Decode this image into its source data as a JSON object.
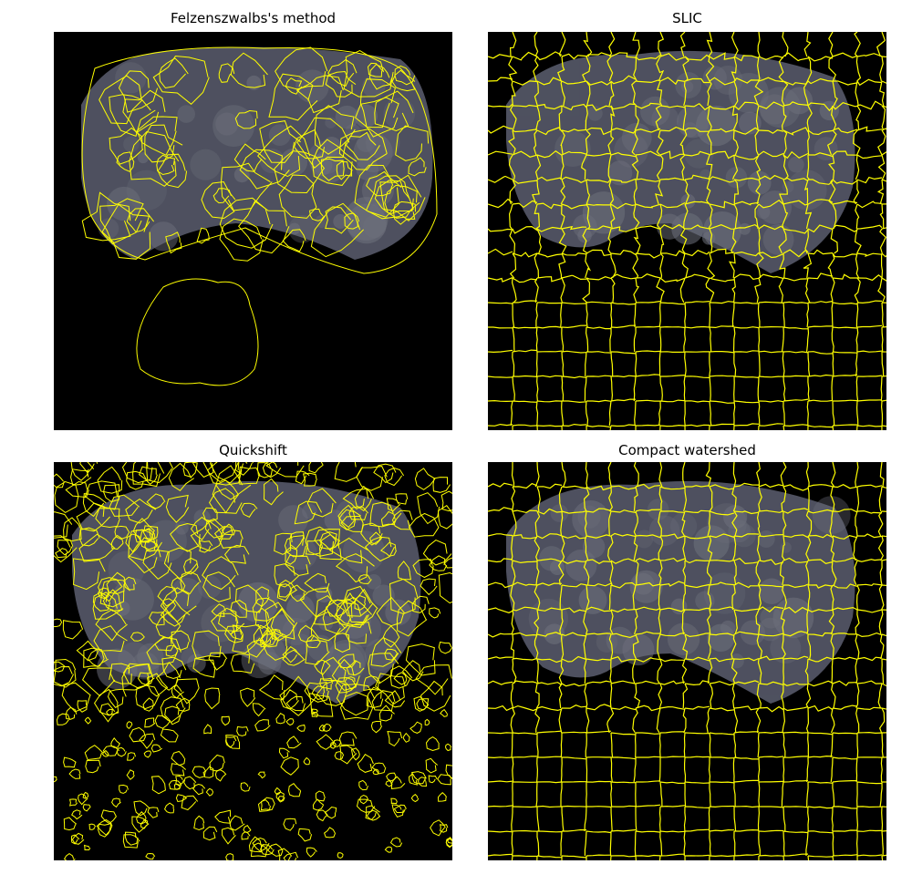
{
  "panels": [
    {
      "title": "Felzenszwalbs's method",
      "method": "felzenszwalb"
    },
    {
      "title": "SLIC",
      "method": "slic"
    },
    {
      "title": "Quickshift",
      "method": "quickshift"
    },
    {
      "title": "Compact watershed",
      "method": "compact-watershed"
    }
  ],
  "colors": {
    "boundary": "#ffff00",
    "background": "#000000",
    "tissue": "#8e93ad"
  }
}
